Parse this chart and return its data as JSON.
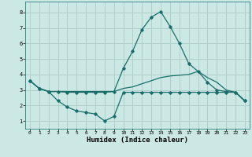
{
  "bg_color": "#cce8e4",
  "grid_color": "#b0d0cc",
  "line_color": "#1a6e6a",
  "xlabel": "Humidex (Indice chaleur)",
  "xlabel_fontsize": 6.5,
  "ylim": [
    0.5,
    8.7
  ],
  "xlim": [
    -0.5,
    23.5
  ],
  "yticks": [
    1,
    2,
    3,
    4,
    5,
    6,
    7,
    8
  ],
  "xticks": [
    0,
    1,
    2,
    3,
    4,
    5,
    6,
    7,
    8,
    9,
    10,
    11,
    12,
    13,
    14,
    15,
    16,
    17,
    18,
    19,
    20,
    21,
    22,
    23
  ],
  "series1_x": [
    0,
    1,
    2,
    3,
    4,
    5,
    6,
    7,
    8,
    9,
    10,
    11,
    12,
    13,
    14,
    15,
    16,
    17,
    18,
    19,
    20,
    21,
    22,
    23
  ],
  "series1_y": [
    3.6,
    3.1,
    2.9,
    2.9,
    2.85,
    2.85,
    2.85,
    2.85,
    2.85,
    2.9,
    4.4,
    5.5,
    6.9,
    7.7,
    8.05,
    7.1,
    6.0,
    4.7,
    4.2,
    3.5,
    3.0,
    2.9,
    2.85,
    2.3
  ],
  "series2_x": [
    0,
    1,
    2,
    3,
    4,
    5,
    6,
    7,
    8,
    9,
    10,
    11,
    12,
    13,
    14,
    15,
    16,
    17,
    18,
    19,
    20,
    21,
    22,
    23
  ],
  "series2_y": [
    3.6,
    3.1,
    2.9,
    2.3,
    1.9,
    1.65,
    1.55,
    1.45,
    1.0,
    1.3,
    2.85,
    2.85,
    2.85,
    2.85,
    2.85,
    2.85,
    2.85,
    2.85,
    2.85,
    2.85,
    2.85,
    2.85,
    2.85,
    2.3
  ],
  "series3_x": [
    0,
    1,
    2,
    3,
    4,
    5,
    6,
    7,
    8,
    9,
    10,
    11,
    12,
    13,
    14,
    15,
    16,
    17,
    18,
    19,
    20,
    21,
    22,
    23
  ],
  "series3_y": [
    3.6,
    3.1,
    2.9,
    2.9,
    2.9,
    2.9,
    2.9,
    2.9,
    2.9,
    2.9,
    3.1,
    3.2,
    3.4,
    3.6,
    3.8,
    3.9,
    3.95,
    4.0,
    4.2,
    3.8,
    3.5,
    3.0,
    2.85,
    2.3
  ]
}
